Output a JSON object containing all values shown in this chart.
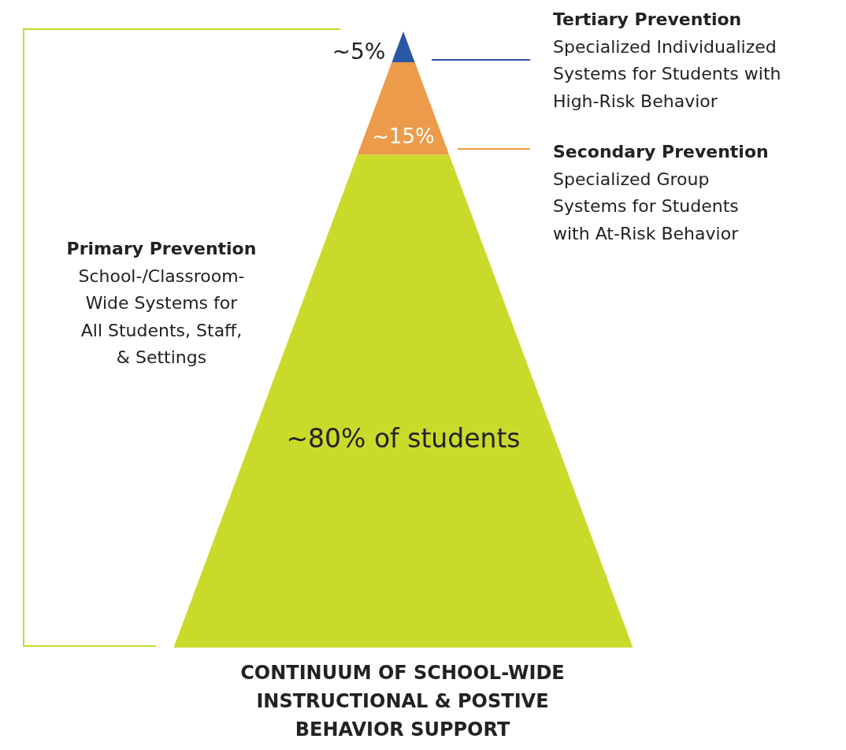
{
  "chart_data": {
    "type": "other",
    "title": "CONTINUUM OF SCHOOL-WIDE\nINSTRUCTIONAL & POSTIVE\nBEHAVIOR SUPPORT",
    "categories": [
      "Tertiary Prevention",
      "Secondary Prevention",
      "Primary Prevention"
    ],
    "values": [
      5,
      15,
      80
    ],
    "value_labels": [
      "~5%",
      "~15%",
      "~80% of students"
    ],
    "colors": [
      "#2a56a5",
      "#eb9b49",
      "#c9da2a"
    ],
    "annotations": [
      "Specialized Individualized\nSystems for Students with\nHigh-Risk Behavior",
      "Specialized Group\nSystems for Students\nwith At-Risk Behavior",
      "School-/Classroom-\nWide Systems for\nAll Students, Staff,\n& Settings"
    ]
  }
}
